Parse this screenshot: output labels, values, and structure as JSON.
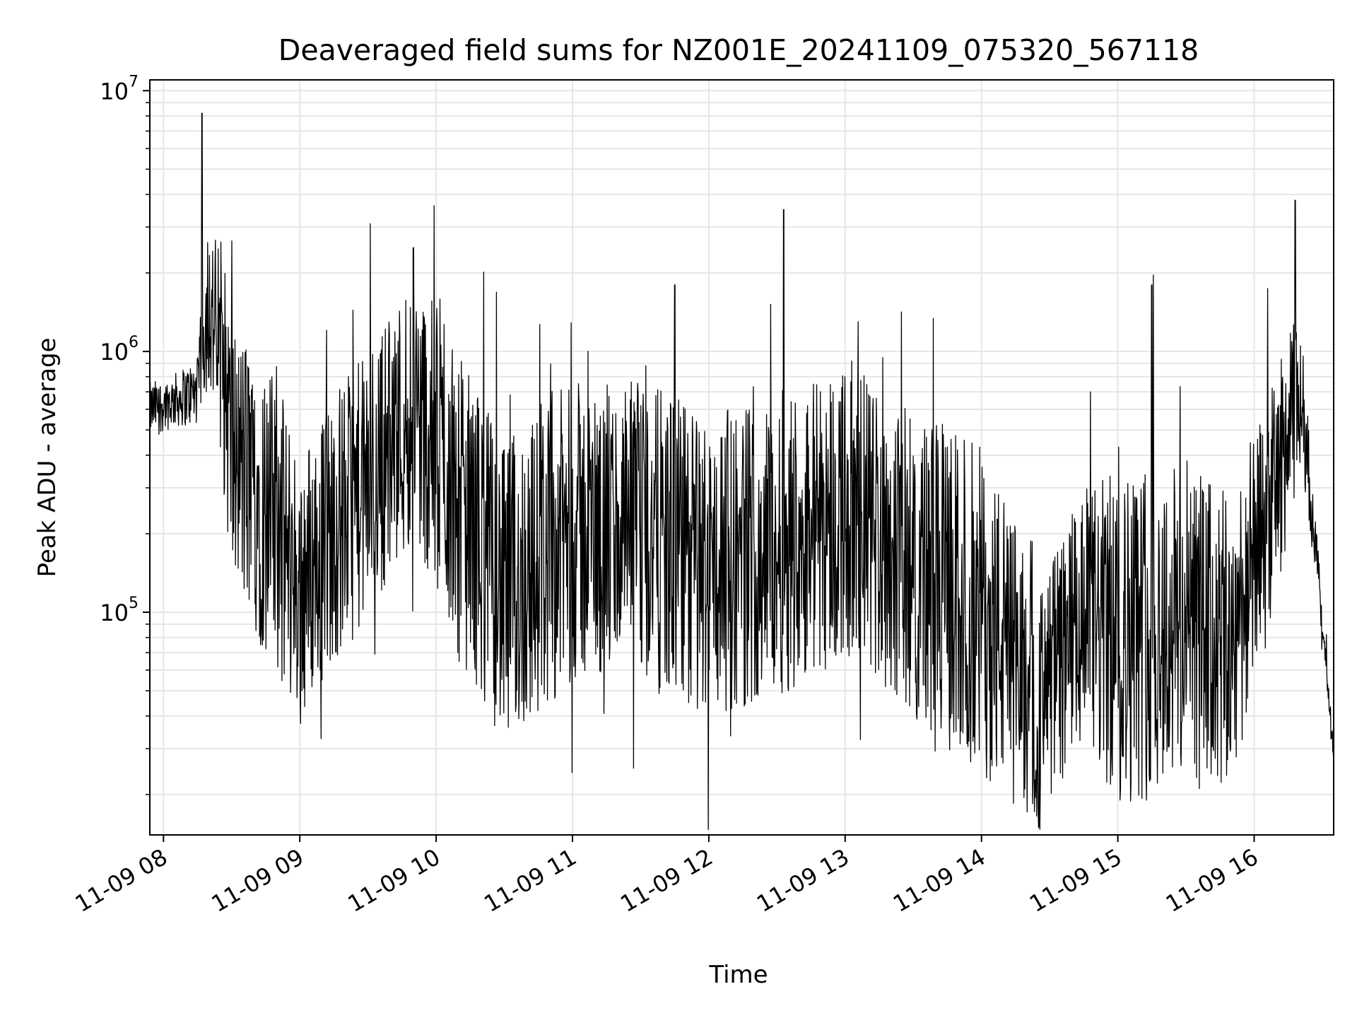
{
  "chart_data": {
    "type": "line",
    "title": "Deaveraged field sums for NZ001E_20241109_075320_567118",
    "xlabel": "Time",
    "ylabel": "Peak ADU - average",
    "y_scale": "log",
    "ylim": [
      14000,
      11000000
    ],
    "xlim": [
      "2024-11-09 07:54",
      "2024-11-09 16:35"
    ],
    "grid": true,
    "line_color": "#000000",
    "grid_color": "#e6e6e6",
    "x_ticks": [
      "11-09 08",
      "11-09 09",
      "11-09 10",
      "11-09 11",
      "11-09 12",
      "11-09 13",
      "11-09 14",
      "11-09 15",
      "11-09 16"
    ],
    "y_ticks": [
      {
        "base": "10",
        "exp": "5",
        "value": 100000
      },
      {
        "base": "10",
        "exp": "6",
        "value": 1000000
      },
      {
        "base": "10",
        "exp": "7",
        "value": 10000000
      }
    ],
    "series_envelope": {
      "x": [
        "2024-11-09 07:54",
        "2024-11-09 08:05",
        "2024-11-09 08:15",
        "2024-11-09 08:20",
        "2024-11-09 08:30",
        "2024-11-09 08:45",
        "2024-11-09 09:00",
        "2024-11-09 09:30",
        "2024-11-09 09:50",
        "2024-11-09 10:10",
        "2024-11-09 10:30",
        "2024-11-09 11:00",
        "2024-11-09 11:30",
        "2024-11-09 12:00",
        "2024-11-09 12:30",
        "2024-11-09 13:00",
        "2024-11-09 13:30",
        "2024-11-09 14:00",
        "2024-11-09 14:25",
        "2024-11-09 14:45",
        "2024-11-09 15:00",
        "2024-11-09 15:30",
        "2024-11-09 15:50",
        "2024-11-09 16:05",
        "2024-11-09 16:15",
        "2024-11-09 16:20",
        "2024-11-09 16:25",
        "2024-11-09 16:30",
        "2024-11-09 16:35"
      ],
      "typical": [
        600000,
        650000,
        700000,
        1500000,
        400000,
        250000,
        120000,
        300000,
        600000,
        250000,
        110000,
        200000,
        200000,
        150000,
        180000,
        250000,
        150000,
        100000,
        40000,
        90000,
        80000,
        90000,
        70000,
        200000,
        450000,
        700000,
        250000,
        80000,
        24000
      ],
      "spread": [
        0.08,
        0.08,
        0.1,
        0.25,
        0.4,
        0.45,
        0.4,
        0.4,
        0.4,
        0.45,
        0.45,
        0.45,
        0.45,
        0.45,
        0.45,
        0.45,
        0.45,
        0.5,
        0.35,
        0.4,
        0.5,
        0.5,
        0.45,
        0.35,
        0.3,
        0.25,
        0.1,
        0.05,
        0.05
      ]
    },
    "peaks": [
      {
        "x": "2024-11-09 08:17",
        "y": 8200000
      },
      {
        "x": "2024-11-09 09:50",
        "y": 2500000
      },
      {
        "x": "2024-11-09 11:45",
        "y": 1800000
      },
      {
        "x": "2024-11-09 12:33",
        "y": 3500000
      },
      {
        "x": "2024-11-09 15:15",
        "y": 1800000
      },
      {
        "x": "2024-11-09 16:18",
        "y": 3800000
      }
    ]
  }
}
